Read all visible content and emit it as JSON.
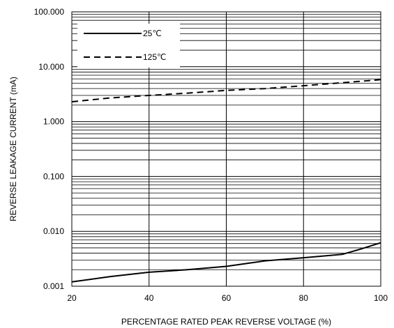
{
  "chart_data": {
    "type": "line",
    "title": "",
    "xlabel": "PERCENTAGE RATED PEAK REVERSE VOLTAGE (%)",
    "ylabel": "REVERSE LEAKAGE CURRENT (mA)",
    "xlim": [
      20,
      100
    ],
    "ylim": [
      0.001,
      100
    ],
    "yscale": "log",
    "grid": true,
    "legend_position": "top-left",
    "x_ticks": [
      20,
      40,
      60,
      80,
      100
    ],
    "x_tick_labels": [
      "20",
      "40",
      "60",
      "80",
      "100"
    ],
    "y_ticks": [
      0.001,
      0.01,
      0.1,
      1,
      10,
      100
    ],
    "y_tick_labels": [
      "0.001",
      "0.010",
      "0.100",
      "1.000",
      "10.000",
      "100.000"
    ],
    "series": [
      {
        "name": "25℃",
        "line_style": "solid",
        "color": "#000000",
        "x": [
          20,
          30,
          40,
          50,
          60,
          70,
          80,
          90,
          95,
          100
        ],
        "y": [
          0.0012,
          0.0015,
          0.0018,
          0.002,
          0.0023,
          0.0029,
          0.0033,
          0.0038,
          0.0048,
          0.0062
        ]
      },
      {
        "name": "125℃",
        "line_style": "dashed",
        "color": "#000000",
        "x": [
          20,
          30,
          40,
          50,
          60,
          70,
          80,
          90,
          100
        ],
        "y": [
          2.3,
          2.7,
          3.0,
          3.3,
          3.7,
          4.0,
          4.5,
          5.1,
          5.8
        ]
      }
    ]
  }
}
